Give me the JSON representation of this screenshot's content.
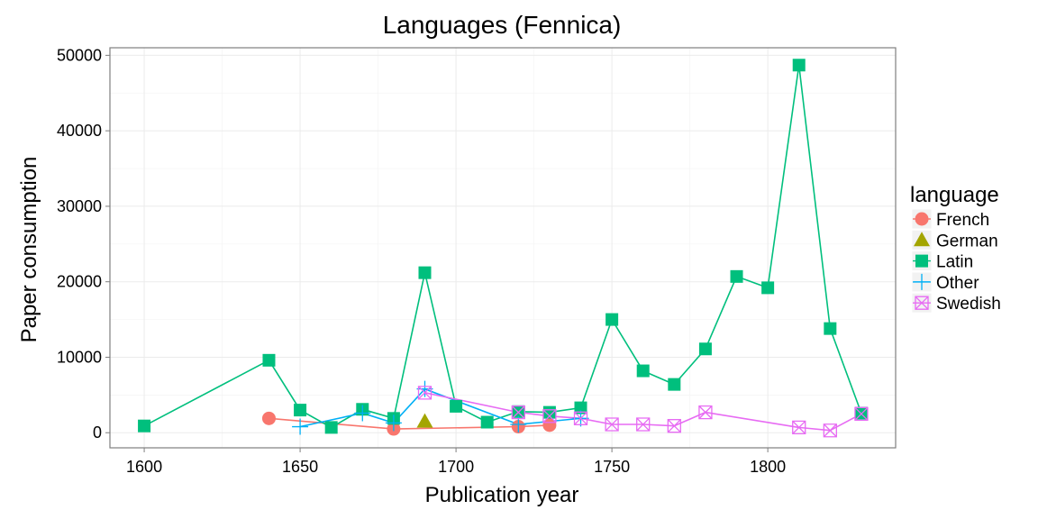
{
  "chart_data": {
    "type": "line",
    "title": "Languages (Fennica)",
    "xlabel": "Publication year",
    "ylabel": "Paper consumption",
    "xlim": [
      1589,
      1841
    ],
    "ylim": [
      -2000,
      51000
    ],
    "x_ticks": [
      1600,
      1650,
      1700,
      1750,
      1800
    ],
    "x_tick_labels": [
      "1600",
      "1650",
      "1700",
      "1750",
      "1800"
    ],
    "y_ticks": [
      0,
      10000,
      20000,
      30000,
      40000,
      50000
    ],
    "y_tick_labels": [
      "0",
      "10000",
      "20000",
      "30000",
      "40000",
      "50000"
    ],
    "grid": true,
    "legend_title": "language",
    "legend_position": "right",
    "series": [
      {
        "name": "French",
        "color": "#F8766D",
        "marker": "circle",
        "points": [
          [
            1640,
            1900
          ],
          [
            1680,
            500
          ],
          [
            1720,
            800
          ],
          [
            1730,
            1000
          ]
        ]
      },
      {
        "name": "German",
        "color": "#A3A500",
        "marker": "triangle",
        "points": [
          [
            1690,
            1500
          ]
        ]
      },
      {
        "name": "Latin",
        "color": "#00BF7D",
        "marker": "square",
        "points": [
          [
            1600,
            900
          ],
          [
            1640,
            9600
          ],
          [
            1650,
            3000
          ],
          [
            1660,
            700
          ],
          [
            1670,
            3100
          ],
          [
            1680,
            1900
          ],
          [
            1690,
            21200
          ],
          [
            1700,
            3500
          ],
          [
            1710,
            1400
          ],
          [
            1720,
            2800
          ],
          [
            1730,
            2700
          ],
          [
            1740,
            3300
          ],
          [
            1750,
            15000
          ],
          [
            1760,
            8200
          ],
          [
            1770,
            6400
          ],
          [
            1780,
            11100
          ],
          [
            1790,
            20700
          ],
          [
            1800,
            19200
          ],
          [
            1810,
            48700
          ],
          [
            1820,
            13800
          ],
          [
            1830,
            2600
          ]
        ]
      },
      {
        "name": "Other",
        "color": "#00B0F6",
        "marker": "plus",
        "points": [
          [
            1650,
            800
          ],
          [
            1670,
            2600
          ],
          [
            1680,
            1300
          ],
          [
            1690,
            5800
          ],
          [
            1720,
            1100
          ],
          [
            1740,
            1900
          ]
        ]
      },
      {
        "name": "Swedish",
        "color": "#E76BF3",
        "marker": "squarecross",
        "points": [
          [
            1690,
            5300
          ],
          [
            1720,
            2700
          ],
          [
            1730,
            2200
          ],
          [
            1740,
            1900
          ],
          [
            1750,
            1100
          ],
          [
            1760,
            1100
          ],
          [
            1770,
            900
          ],
          [
            1780,
            2700
          ],
          [
            1810,
            700
          ],
          [
            1820,
            300
          ],
          [
            1830,
            2500
          ]
        ]
      }
    ]
  }
}
